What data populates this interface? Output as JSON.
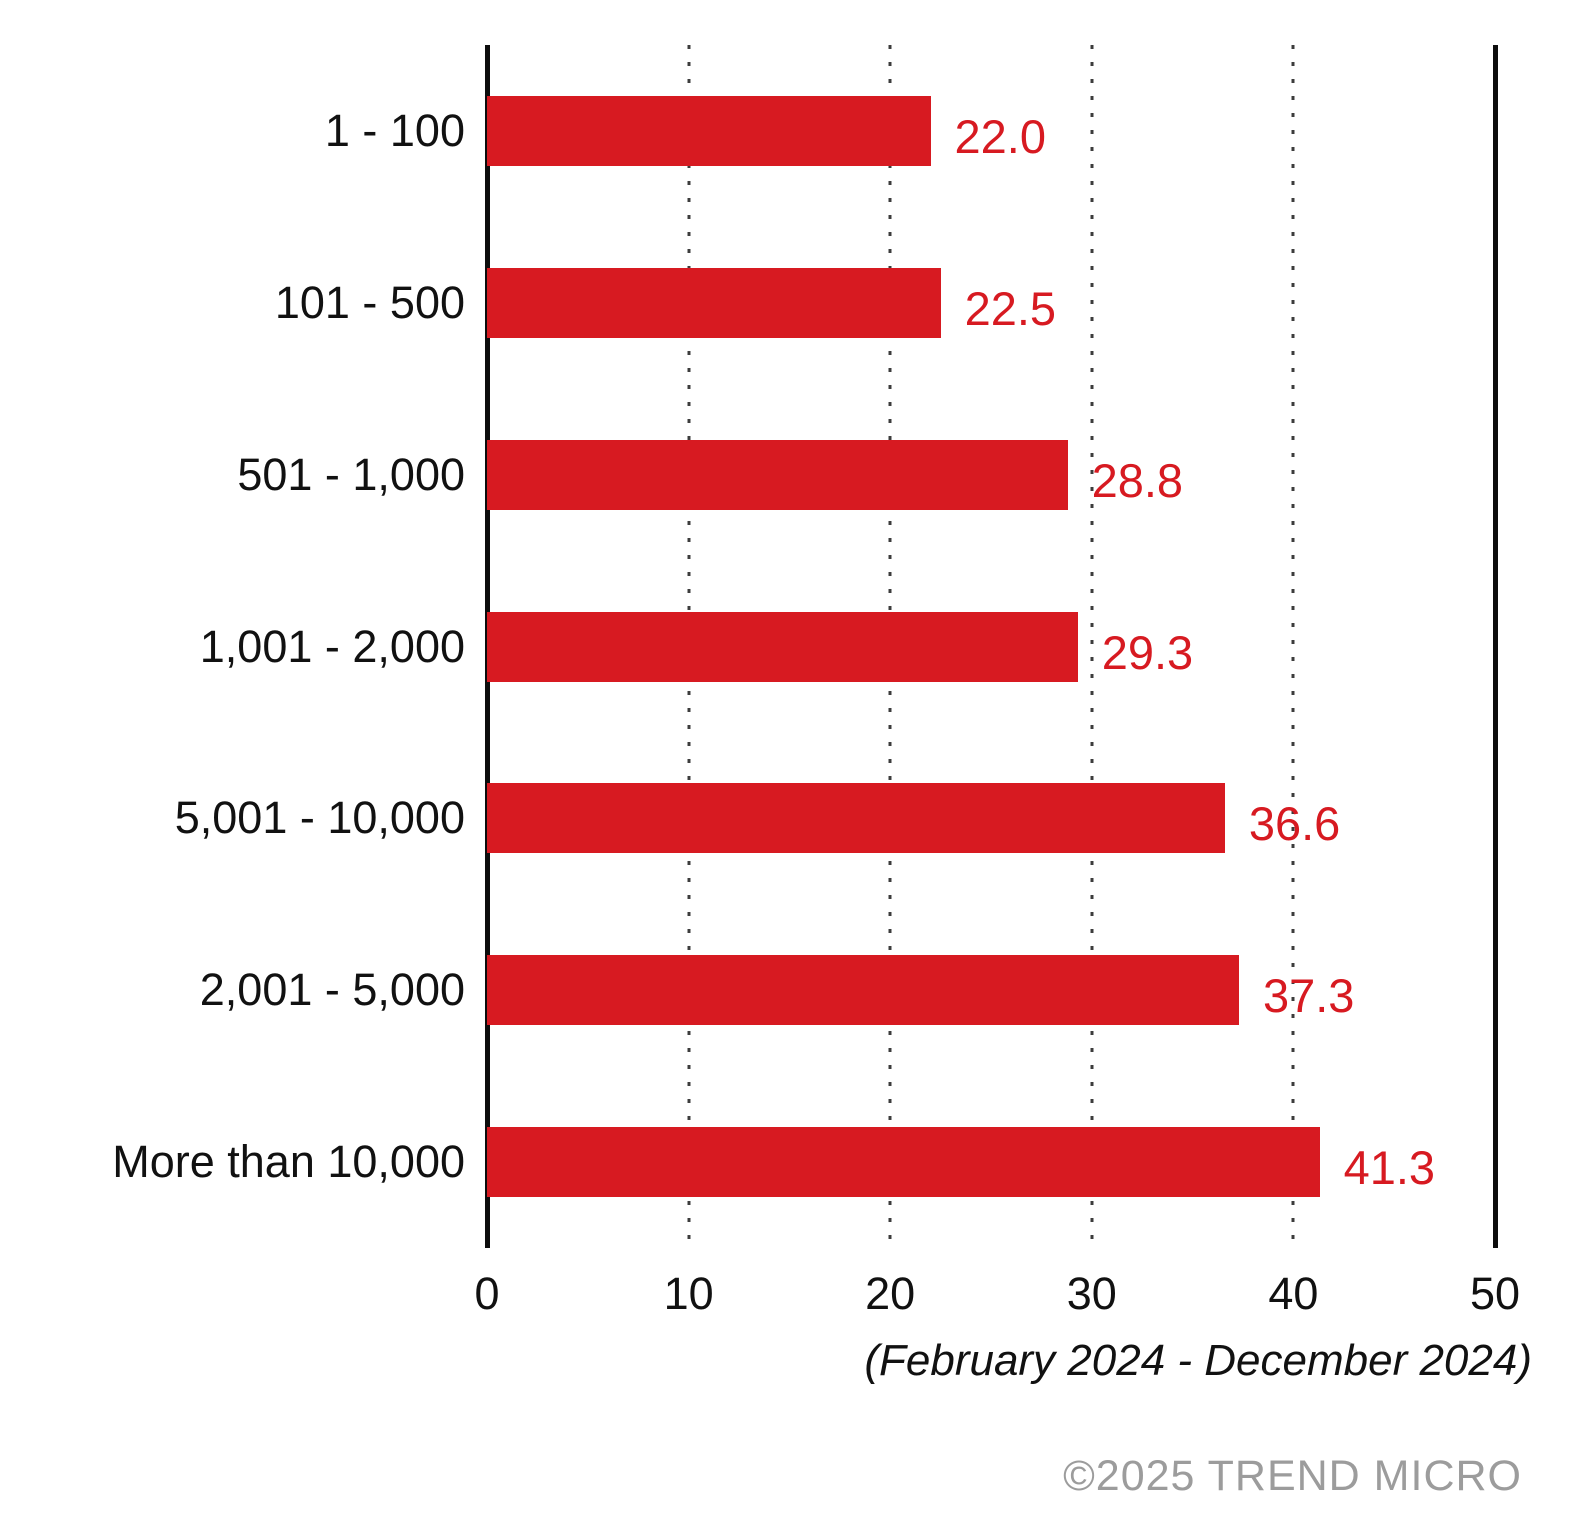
{
  "chart_data": {
    "type": "bar",
    "orientation": "horizontal",
    "categories": [
      "1 - 100",
      "101 - 500",
      "501 - 1,000",
      "1,001 - 2,000",
      "5,001 - 10,000",
      "2,001 - 5,000",
      "More than 10,000"
    ],
    "values": [
      22.0,
      22.5,
      28.8,
      29.3,
      36.6,
      37.3,
      41.3
    ],
    "value_labels": [
      "22.0",
      "22.5",
      "28.8",
      "29.3",
      "36.6",
      "37.3",
      "41.3"
    ],
    "title": "",
    "xlabel": "",
    "ylabel": "",
    "xlim": [
      0,
      50
    ],
    "xticks": [
      0,
      10,
      20,
      30,
      40,
      50
    ],
    "gridlines": {
      "style": "dotted",
      "at": [
        10,
        20,
        30,
        40
      ]
    },
    "legend": "none",
    "bar_color": "#d71a21",
    "value_label_color": "#d71a21",
    "axis_color": "#0d0d0d"
  },
  "footer": {
    "period": "(February 2024 - December 2024)",
    "copyright": "©2025 TREND MICRO"
  }
}
